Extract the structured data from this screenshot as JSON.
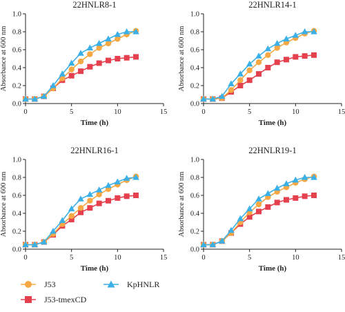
{
  "colors": {
    "J53": "#f5a843",
    "J53-tmexCD": "#e5404d",
    "KpHNLR": "#3bb0e6",
    "axis": "#222222"
  },
  "legend": {
    "items": [
      {
        "name": "J53",
        "marker": "circle"
      },
      {
        "name": "KpHNLR",
        "marker": "triangle"
      },
      {
        "name": "J53-tmexCD",
        "marker": "square"
      }
    ]
  },
  "chart_data": [
    {
      "type": "line",
      "title": "22HNLR8-1",
      "xlabel": "Time (h)",
      "ylabel": "Absorbance at 600 nm",
      "xlim": [
        0,
        15
      ],
      "ylim": [
        0,
        1.0
      ],
      "xticks": [
        0,
        5,
        10,
        15
      ],
      "yticks": [
        0,
        0.2,
        0.4,
        0.6,
        0.8,
        1.0
      ],
      "ytick_labels": [
        "0.0",
        "0.2",
        "0.4",
        "0.6",
        "0.8",
        "1.0"
      ],
      "grid": false,
      "x": [
        0,
        1,
        2,
        3,
        4,
        5,
        6,
        7,
        8,
        9,
        10,
        11,
        12
      ],
      "series": [
        {
          "name": "J53",
          "marker": "circle",
          "values": [
            0.05,
            0.05,
            0.08,
            0.17,
            0.28,
            0.38,
            0.47,
            0.55,
            0.62,
            0.67,
            0.72,
            0.77,
            0.81
          ]
        },
        {
          "name": "J53-tmexCD",
          "marker": "square",
          "values": [
            0.05,
            0.05,
            0.08,
            0.17,
            0.26,
            0.31,
            0.36,
            0.41,
            0.45,
            0.48,
            0.5,
            0.51,
            0.52
          ]
        },
        {
          "name": "KpHNLR",
          "marker": "triangle",
          "values": [
            0.05,
            0.05,
            0.08,
            0.2,
            0.33,
            0.45,
            0.56,
            0.62,
            0.67,
            0.72,
            0.77,
            0.8,
            0.8
          ]
        }
      ]
    },
    {
      "type": "line",
      "title": "22HNLR14-1",
      "xlabel": "Time (h)",
      "ylabel": "Absorbance at 600 nm",
      "xlim": [
        0,
        15
      ],
      "ylim": [
        0,
        1.0
      ],
      "xticks": [
        0,
        5,
        10,
        15
      ],
      "yticks": [
        0,
        0.2,
        0.4,
        0.6,
        0.8,
        1.0
      ],
      "ytick_labels": [
        "0.0",
        "0.2",
        "0.4",
        "0.6",
        "0.8",
        "1.0"
      ],
      "grid": false,
      "x": [
        0,
        1,
        2,
        3,
        4,
        5,
        6,
        7,
        8,
        9,
        10,
        11,
        12
      ],
      "series": [
        {
          "name": "J53",
          "marker": "circle",
          "values": [
            0.05,
            0.05,
            0.06,
            0.15,
            0.26,
            0.37,
            0.46,
            0.54,
            0.62,
            0.68,
            0.73,
            0.78,
            0.81
          ]
        },
        {
          "name": "J53-tmexCD",
          "marker": "square",
          "values": [
            0.05,
            0.05,
            0.06,
            0.13,
            0.2,
            0.26,
            0.33,
            0.4,
            0.46,
            0.49,
            0.52,
            0.53,
            0.54
          ]
        },
        {
          "name": "KpHNLR",
          "marker": "triangle",
          "values": [
            0.05,
            0.05,
            0.08,
            0.22,
            0.33,
            0.44,
            0.53,
            0.61,
            0.67,
            0.72,
            0.76,
            0.8,
            0.8
          ]
        }
      ]
    },
    {
      "type": "line",
      "title": "22HNLR16-1",
      "xlabel": "Time (h)",
      "ylabel": "Absorbance at 600 nm",
      "xlim": [
        0,
        15
      ],
      "ylim": [
        0,
        1.0
      ],
      "xticks": [
        0,
        5,
        10,
        15
      ],
      "yticks": [
        0,
        0.2,
        0.4,
        0.6,
        0.8,
        1.0
      ],
      "ytick_labels": [
        "0.0",
        "0.2",
        "0.4",
        "0.6",
        "0.8",
        "1.0"
      ],
      "grid": false,
      "x": [
        0,
        1,
        2,
        3,
        4,
        5,
        6,
        7,
        8,
        9,
        10,
        11,
        12
      ],
      "series": [
        {
          "name": "J53",
          "marker": "circle",
          "values": [
            0.05,
            0.05,
            0.08,
            0.17,
            0.28,
            0.37,
            0.46,
            0.54,
            0.61,
            0.67,
            0.72,
            0.77,
            0.81
          ]
        },
        {
          "name": "J53-tmexCD",
          "marker": "square",
          "values": [
            0.05,
            0.05,
            0.08,
            0.16,
            0.26,
            0.33,
            0.41,
            0.46,
            0.51,
            0.54,
            0.57,
            0.59,
            0.6
          ]
        },
        {
          "name": "KpHNLR",
          "marker": "triangle",
          "values": [
            0.05,
            0.05,
            0.08,
            0.2,
            0.32,
            0.45,
            0.56,
            0.61,
            0.66,
            0.71,
            0.75,
            0.79,
            0.8
          ]
        }
      ]
    },
    {
      "type": "line",
      "title": "22HNLR19-1",
      "xlabel": "Time (h)",
      "ylabel": "Absorbance at 600 nm",
      "xlim": [
        0,
        15
      ],
      "ylim": [
        0,
        1.0
      ],
      "xticks": [
        0,
        5,
        10,
        15
      ],
      "yticks": [
        0,
        0.2,
        0.4,
        0.6,
        0.8,
        1.0
      ],
      "ytick_labels": [
        "0.0",
        "0.2",
        "0.4",
        "0.6",
        "0.8",
        "1.0"
      ],
      "grid": false,
      "x": [
        0,
        1,
        2,
        3,
        4,
        5,
        6,
        7,
        8,
        9,
        10,
        11,
        12
      ],
      "series": [
        {
          "name": "J53",
          "marker": "circle",
          "values": [
            0.05,
            0.05,
            0.09,
            0.18,
            0.3,
            0.41,
            0.5,
            0.58,
            0.64,
            0.69,
            0.74,
            0.78,
            0.81
          ]
        },
        {
          "name": "J53-tmexCD",
          "marker": "square",
          "values": [
            0.05,
            0.05,
            0.09,
            0.18,
            0.28,
            0.36,
            0.42,
            0.47,
            0.52,
            0.55,
            0.57,
            0.59,
            0.6
          ]
        },
        {
          "name": "KpHNLR",
          "marker": "triangle",
          "values": [
            0.05,
            0.05,
            0.09,
            0.21,
            0.34,
            0.45,
            0.56,
            0.62,
            0.68,
            0.73,
            0.77,
            0.8,
            0.8
          ]
        }
      ]
    }
  ]
}
